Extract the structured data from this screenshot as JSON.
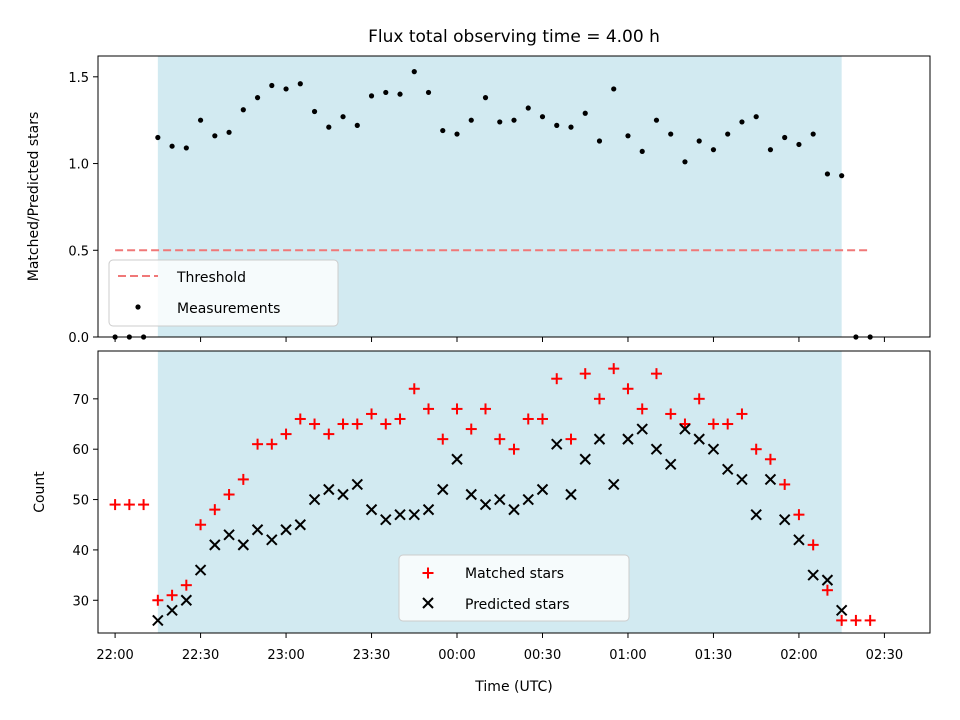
{
  "title": "Flux total observing time = 4.00 h",
  "colors": {
    "span": "#add8e6",
    "threshold": "#f07878",
    "measurement": "#000000",
    "matched": "#ff0000",
    "predicted": "#000000"
  },
  "chart_data": [
    {
      "type": "scatter",
      "ylabel": "Matched/Predicted stars",
      "xlabel": "",
      "ylim": [
        0.0,
        1.62
      ],
      "yticks": [
        0.0,
        0.5,
        1.0,
        1.5
      ],
      "ytick_labels": [
        "0.0",
        "0.5",
        "1.0",
        "1.5"
      ],
      "xlim_minutes": [
        -6,
        286
      ],
      "x_unit": "minutes after 22:00 UTC",
      "shaded_span_minutes": [
        15,
        255
      ],
      "legend": {
        "placement": "lower-left",
        "entries": [
          "Threshold",
          "Measurements"
        ]
      },
      "threshold": {
        "name": "Threshold",
        "value": 0.5,
        "x_range_minutes": [
          0,
          265
        ],
        "style": "dashed"
      },
      "series": [
        {
          "name": "Measurements",
          "marker": "dot",
          "x": [
            0,
            5,
            10,
            15,
            20,
            25,
            30,
            35,
            40,
            45,
            50,
            55,
            60,
            65,
            70,
            75,
            80,
            85,
            90,
            95,
            100,
            105,
            110,
            115,
            120,
            125,
            130,
            135,
            140,
            145,
            150,
            155,
            160,
            165,
            170,
            175,
            180,
            185,
            190,
            195,
            200,
            205,
            210,
            215,
            220,
            225,
            230,
            235,
            240,
            245,
            250,
            255,
            260,
            265
          ],
          "y": [
            0,
            0,
            0,
            1.15,
            1.1,
            1.09,
            1.25,
            1.16,
            1.18,
            1.31,
            1.38,
            1.45,
            1.43,
            1.46,
            1.3,
            1.21,
            1.27,
            1.22,
            1.39,
            1.41,
            1.4,
            1.53,
            1.41,
            1.19,
            1.17,
            1.25,
            1.38,
            1.24,
            1.25,
            1.32,
            1.27,
            1.22,
            1.21,
            1.29,
            1.13,
            1.43,
            1.16,
            1.07,
            1.25,
            1.17,
            1.01,
            1.13,
            1.08,
            1.17,
            1.24,
            1.27,
            1.08,
            1.15,
            1.11,
            1.17,
            0.94,
            0.93,
            0.0,
            0.0
          ]
        }
      ]
    },
    {
      "type": "scatter",
      "ylabel": "Count",
      "xlabel": "Time (UTC)",
      "ylim": [
        23.5,
        79.5
      ],
      "yticks": [
        30,
        40,
        50,
        60,
        70
      ],
      "ytick_labels": [
        "30",
        "40",
        "50",
        "60",
        "70"
      ],
      "xlim_minutes": [
        -6,
        286
      ],
      "x_unit": "minutes after 22:00 UTC",
      "xticks_minutes": [
        0,
        30,
        60,
        90,
        120,
        150,
        180,
        210,
        240,
        270
      ],
      "xtick_labels": [
        "22:00",
        "22:30",
        "23:00",
        "23:30",
        "00:00",
        "00:30",
        "01:00",
        "01:30",
        "02:00",
        "02:30"
      ],
      "shaded_span_minutes": [
        15,
        255
      ],
      "legend": {
        "placement": "lower-center",
        "entries": [
          "Matched stars",
          "Predicted stars"
        ]
      },
      "series": [
        {
          "name": "Matched stars",
          "marker": "plus",
          "x": [
            0,
            5,
            10,
            15,
            20,
            25,
            30,
            35,
            40,
            45,
            50,
            55,
            60,
            65,
            70,
            75,
            80,
            85,
            90,
            95,
            100,
            105,
            110,
            115,
            120,
            125,
            130,
            135,
            140,
            145,
            150,
            155,
            160,
            165,
            170,
            175,
            180,
            185,
            190,
            195,
            200,
            205,
            210,
            215,
            220,
            225,
            230,
            235,
            240,
            245,
            250,
            255,
            260,
            265
          ],
          "y": [
            49,
            49,
            49,
            30,
            31,
            33,
            45,
            48,
            51,
            54,
            61,
            61,
            63,
            66,
            65,
            63,
            65,
            65,
            67,
            65,
            66,
            72,
            68,
            62,
            68,
            64,
            68,
            62,
            60,
            66,
            66,
            74,
            62,
            75,
            70,
            76,
            72,
            68,
            75,
            67,
            65,
            70,
            65,
            65,
            67,
            60,
            58,
            53,
            47,
            41,
            32,
            26,
            26,
            26
          ]
        },
        {
          "name": "Predicted stars",
          "marker": "x",
          "x": [
            15,
            20,
            25,
            30,
            35,
            40,
            45,
            50,
            55,
            60,
            65,
            70,
            75,
            80,
            85,
            90,
            95,
            100,
            105,
            110,
            115,
            120,
            125,
            130,
            135,
            140,
            145,
            150,
            155,
            160,
            165,
            170,
            175,
            180,
            185,
            190,
            195,
            200,
            205,
            210,
            215,
            220,
            225,
            230,
            235,
            240,
            245,
            250,
            255
          ],
          "y": [
            26,
            28,
            30,
            36,
            41,
            43,
            41,
            44,
            42,
            44,
            45,
            50,
            52,
            51,
            53,
            48,
            46,
            47,
            47,
            48,
            52,
            58,
            51,
            49,
            50,
            48,
            50,
            52,
            61,
            51,
            58,
            62,
            53,
            62,
            64,
            60,
            57,
            64,
            62,
            60,
            56,
            54,
            47,
            54,
            46,
            42,
            35,
            34,
            28
          ]
        }
      ]
    }
  ]
}
